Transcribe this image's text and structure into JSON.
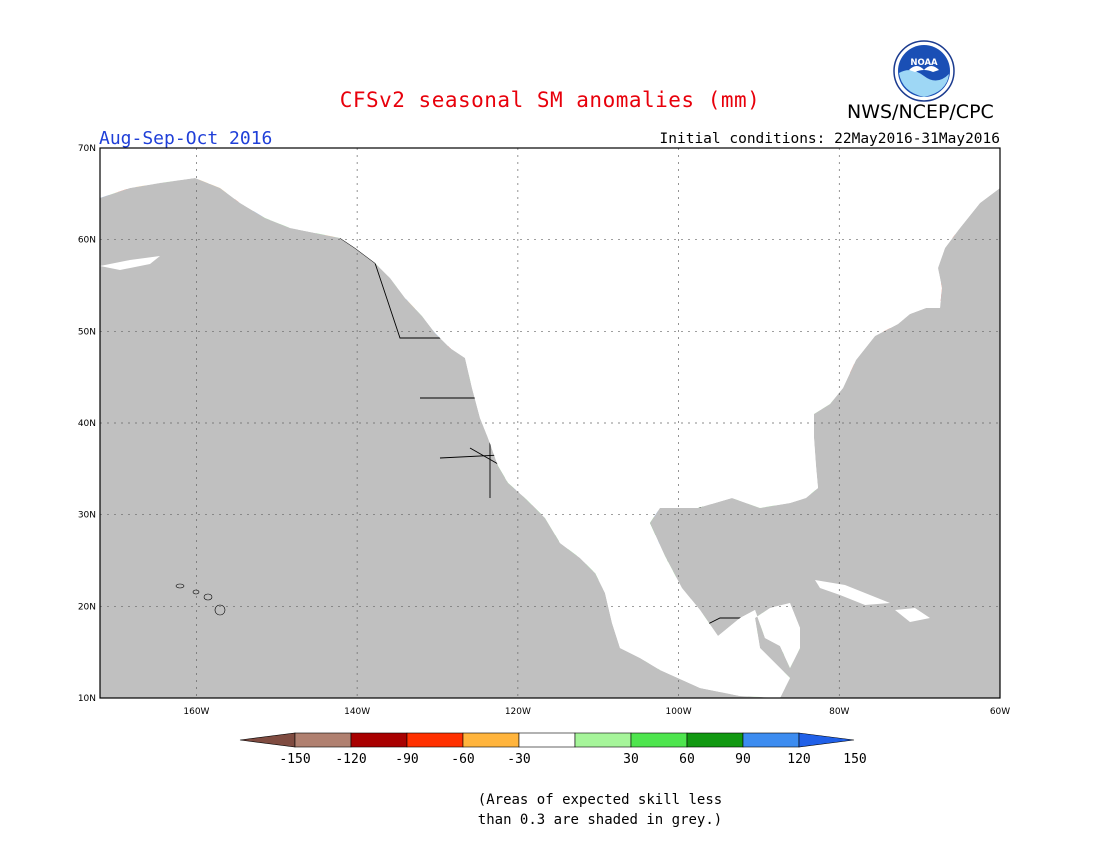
{
  "title": "CFSv2 seasonal SM anomalies (mm)",
  "season": "Aug-Sep-Oct 2016",
  "initial_conditions": "Initial conditions: 22May2016-31May2016",
  "agency": "NWS/NCEP/CPC",
  "logo_text": "NOAA",
  "map": {
    "region": "North America",
    "lon_range": [
      -172,
      -60
    ],
    "lat_range": [
      10,
      70
    ],
    "lat_labels": [
      "70N",
      "60N",
      "50N",
      "40N",
      "30N",
      "20N",
      "10N"
    ],
    "lon_labels": [
      "160W",
      "140W",
      "120W",
      "100W",
      "80W",
      "60W"
    ]
  },
  "legend": {
    "labels": [
      "-150",
      "-120",
      "-90",
      "-60",
      "-30",
      "30",
      "60",
      "90",
      "120",
      "150"
    ],
    "colors": [
      "#7f4b40",
      "#b08070",
      "#a80000",
      "#ff3000",
      "#ffb43c",
      "#ffffff",
      "#a6f59a",
      "#4ee54e",
      "#129912",
      "#3c8cf0",
      "#2060e8"
    ],
    "note_line1": "(Areas of expected skill less",
    "note_line2": "than 0.3 are shaded in grey.)"
  }
}
